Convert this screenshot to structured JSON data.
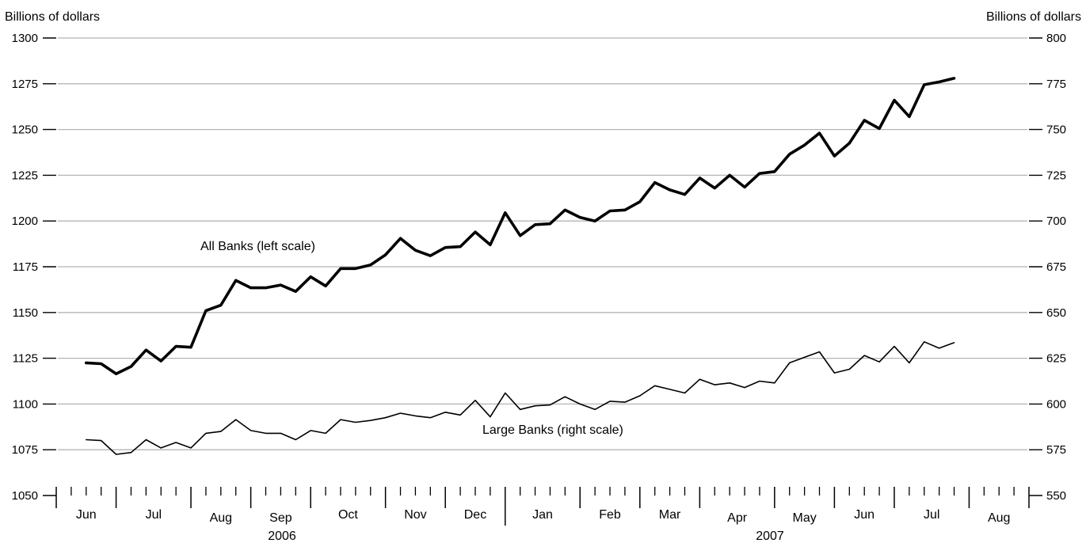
{
  "chart_data": {
    "type": "line",
    "title": "",
    "ylabel_left": "Billions of dollars",
    "ylabel_right": "Billions of dollars",
    "ylim_left": [
      1050,
      1300
    ],
    "ylim_right": [
      550,
      800
    ],
    "yticks_left": [
      "1050",
      "1075",
      "1100",
      "1125",
      "1150",
      "1175",
      "1200",
      "1225",
      "1250",
      "1275",
      "1300"
    ],
    "yticks_right": [
      "550",
      "575",
      "600",
      "625",
      "650",
      "675",
      "700",
      "725",
      "750",
      "775",
      "800"
    ],
    "grid": true,
    "x_axis": {
      "weeks_total": 65,
      "months": [
        "Jun",
        "Jul",
        "Aug",
        "Sep",
        "Oct",
        "Nov",
        "Dec",
        "Jan",
        "Feb",
        "Mar",
        "Apr",
        "May",
        "Jun",
        "Jul",
        "Aug"
      ],
      "years": [
        "2006",
        "2007"
      ]
    },
    "series": [
      {
        "name": "All Banks (left scale)",
        "axis": "left",
        "color": "#000000",
        "values": [
          1122.5,
          1122,
          1116.5,
          1120.5,
          1129.5,
          1123.5,
          1131.5,
          1131,
          1151,
          1154,
          1167.5,
          1163.5,
          1163.5,
          1165,
          1161.5,
          1169.5,
          1164.5,
          1174,
          1174,
          1176,
          1181.5,
          1190.5,
          1184,
          1181,
          1185.5,
          1186,
          1194,
          1187,
          1204.5,
          1192,
          1198,
          1198.5,
          1206,
          1202,
          1200,
          1205.5,
          1206,
          1210.5,
          1221,
          1217,
          1214.5,
          1223.5,
          1218,
          1225,
          1218.5,
          1226,
          1227,
          1236.5,
          1241.5,
          1248,
          1235.5,
          1242.5,
          1255,
          1250.5,
          1266,
          1257,
          1274.5,
          1276,
          1278
        ]
      },
      {
        "name": "Large Banks (right scale)",
        "axis": "right",
        "color": "#000000",
        "values": [
          580.5,
          580,
          572.5,
          573.5,
          580.5,
          576,
          579,
          576,
          584,
          585,
          591.5,
          585.5,
          584,
          584,
          580.5,
          585.5,
          584,
          591.5,
          590,
          591,
          592.5,
          595,
          593.5,
          592.5,
          595.5,
          594,
          602,
          593,
          606,
          597,
          599,
          599.5,
          604,
          600,
          597,
          601.5,
          601,
          604.5,
          610,
          608,
          606,
          613.5,
          610.5,
          611.5,
          609,
          612.5,
          611.5,
          622.5,
          625.5,
          628.5,
          617,
          619,
          626.5,
          623,
          631.5,
          622.5,
          634,
          630.5,
          633.5
        ]
      }
    ]
  }
}
